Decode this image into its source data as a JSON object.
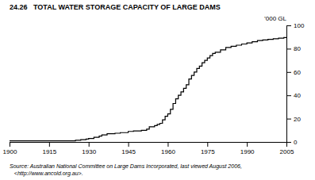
{
  "chart_data": {
    "type": "line",
    "title": "24.26   TOTAL WATER STORAGE CAPACITY OF LARGE DAMS",
    "ylabel": "’000 GL",
    "annotations": [
      "Source: Australian National Committee on Large Dams Incorporated, last viewed August 2006,",
      "   <http://www.ancold.org.au>."
    ],
    "x": [
      1900,
      1905,
      1910,
      1915,
      1920,
      1925,
      1927,
      1929,
      1930,
      1932,
      1934,
      1935,
      1937,
      1940,
      1942,
      1945,
      1947,
      1950,
      1952,
      1953,
      1955,
      1956,
      1957,
      1958,
      1959,
      1960,
      1961,
      1962,
      1963,
      1964,
      1965,
      1966,
      1967,
      1968,
      1969,
      1970,
      1971,
      1972,
      1973,
      1974,
      1975,
      1976,
      1977,
      1978,
      1980,
      1982,
      1984,
      1986,
      1988,
      1990,
      1992,
      1994,
      1996,
      1998,
      2000,
      2002,
      2004,
      2005
    ],
    "series": [
      {
        "color": "#000000",
        "line_style": "steps",
        "values": [
          1,
          1,
          1,
          1,
          1,
          1.5,
          2,
          2.5,
          3,
          4,
          5,
          6,
          7,
          7.5,
          8,
          9,
          9.5,
          10,
          11,
          13,
          14,
          15,
          16,
          19,
          22,
          24,
          28,
          33,
          37,
          40,
          43,
          46,
          49,
          54,
          57,
          60,
          63,
          65,
          68,
          70,
          72,
          74,
          76,
          77,
          79,
          81,
          82,
          83,
          84,
          85,
          86,
          87,
          87.5,
          88,
          88.5,
          89,
          89.5,
          90
        ]
      }
    ],
    "xlim": [
      1900,
      2005
    ],
    "ylim": [
      0,
      100
    ],
    "xticks": [
      1900,
      1915,
      1930,
      1945,
      1960,
      1975,
      1990,
      2005
    ],
    "yticks": [
      0,
      20,
      40,
      60,
      80,
      100
    ],
    "grid": false
  }
}
